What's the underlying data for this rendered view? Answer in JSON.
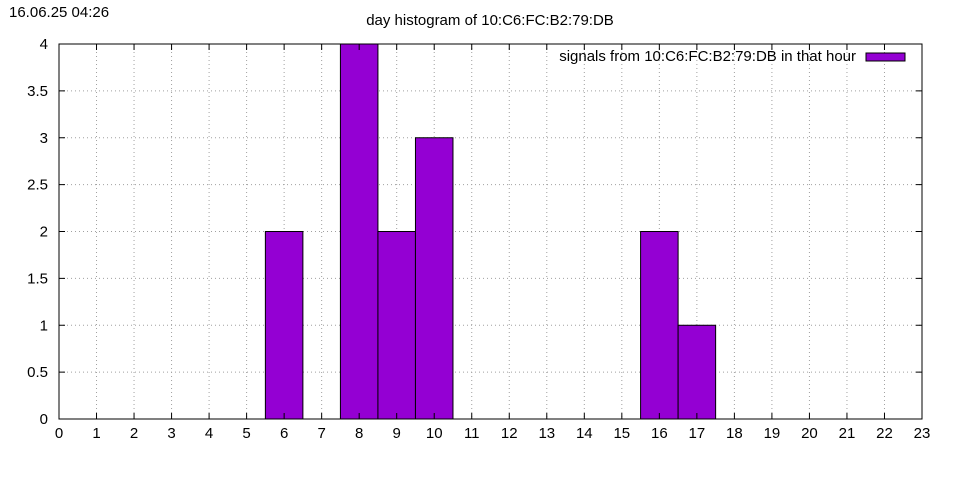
{
  "header": {
    "timestamp": "16.06.25 04:26"
  },
  "chart_data": {
    "type": "bar",
    "title": "day histogram of 10:C6:FC:B2:79:DB",
    "xlabel": "",
    "ylabel": "",
    "xlim": [
      0,
      23
    ],
    "ylim": [
      0,
      4
    ],
    "x_ticks": [
      "0",
      "1",
      "2",
      "3",
      "4",
      "5",
      "6",
      "7",
      "8",
      "9",
      "10",
      "11",
      "12",
      "13",
      "14",
      "15",
      "16",
      "17",
      "18",
      "19",
      "20",
      "21",
      "22",
      "23"
    ],
    "y_ticks": [
      "0",
      "0.5",
      "1",
      "1.5",
      "2",
      "2.5",
      "3",
      "3.5",
      "4"
    ],
    "grid": true,
    "legend_position": "top-right",
    "series": [
      {
        "name": "signals from 10:C6:FC:B2:79:DB in that hour",
        "color": "#9400d3",
        "categories": [
          "6",
          "8",
          "9",
          "10",
          "16",
          "17"
        ],
        "x": [
          6,
          8,
          9,
          10,
          16,
          17
        ],
        "values": [
          2,
          4,
          2,
          3,
          2,
          1
        ]
      }
    ]
  }
}
